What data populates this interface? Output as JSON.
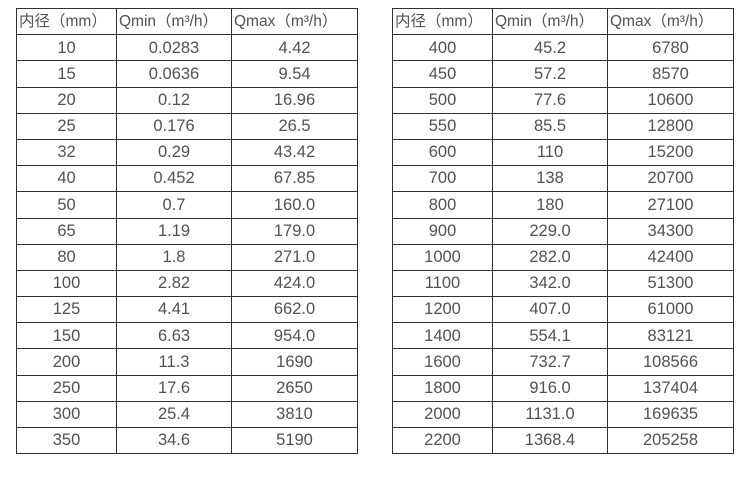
{
  "tables": [
    {
      "name": "small-diameter-flow-range-table",
      "headers": [
        "内径（mm）",
        "Qmin（m³/h）",
        "Qmax（m³/h）"
      ],
      "rows": [
        [
          "10",
          "0.0283",
          "4.42"
        ],
        [
          "15",
          "0.0636",
          "9.54"
        ],
        [
          "20",
          "0.12",
          "16.96"
        ],
        [
          "25",
          "0.176",
          "26.5"
        ],
        [
          "32",
          "0.29",
          "43.42"
        ],
        [
          "40",
          "0.452",
          "67.85"
        ],
        [
          "50",
          "0.7",
          "160.0"
        ],
        [
          "65",
          "1.19",
          "179.0"
        ],
        [
          "80",
          "1.8",
          "271.0"
        ],
        [
          "100",
          "2.82",
          "424.0"
        ],
        [
          "125",
          "4.41",
          "662.0"
        ],
        [
          "150",
          "6.63",
          "954.0"
        ],
        [
          "200",
          "11.3",
          "1690"
        ],
        [
          "250",
          "17.6",
          "2650"
        ],
        [
          "300",
          "25.4",
          "3810"
        ],
        [
          "350",
          "34.6",
          "5190"
        ]
      ]
    },
    {
      "name": "large-diameter-flow-range-table",
      "headers": [
        "内径（mm）",
        "Qmin（m³/h）",
        "Qmax（m³/h）"
      ],
      "rows": [
        [
          "400",
          "45.2",
          "6780"
        ],
        [
          "450",
          "57.2",
          "8570"
        ],
        [
          "500",
          "77.6",
          "10600"
        ],
        [
          "550",
          "85.5",
          "12800"
        ],
        [
          "600",
          "110",
          "15200"
        ],
        [
          "700",
          "138",
          "20700"
        ],
        [
          "800",
          "180",
          "27100"
        ],
        [
          "900",
          "229.0",
          "34300"
        ],
        [
          "1000",
          "282.0",
          "42400"
        ],
        [
          "1100",
          "342.0",
          "51300"
        ],
        [
          "1200",
          "407.0",
          "61000"
        ],
        [
          "1400",
          "554.1",
          "83121"
        ],
        [
          "1600",
          "732.7",
          "108566"
        ],
        [
          "1800",
          "916.0",
          "137404"
        ],
        [
          "2000",
          "1131.0",
          "169635"
        ],
        [
          "2200",
          "1368.4",
          "205258"
        ]
      ]
    }
  ],
  "colors": {
    "border": "#303030",
    "text": "#525252",
    "background": "#ffffff"
  }
}
